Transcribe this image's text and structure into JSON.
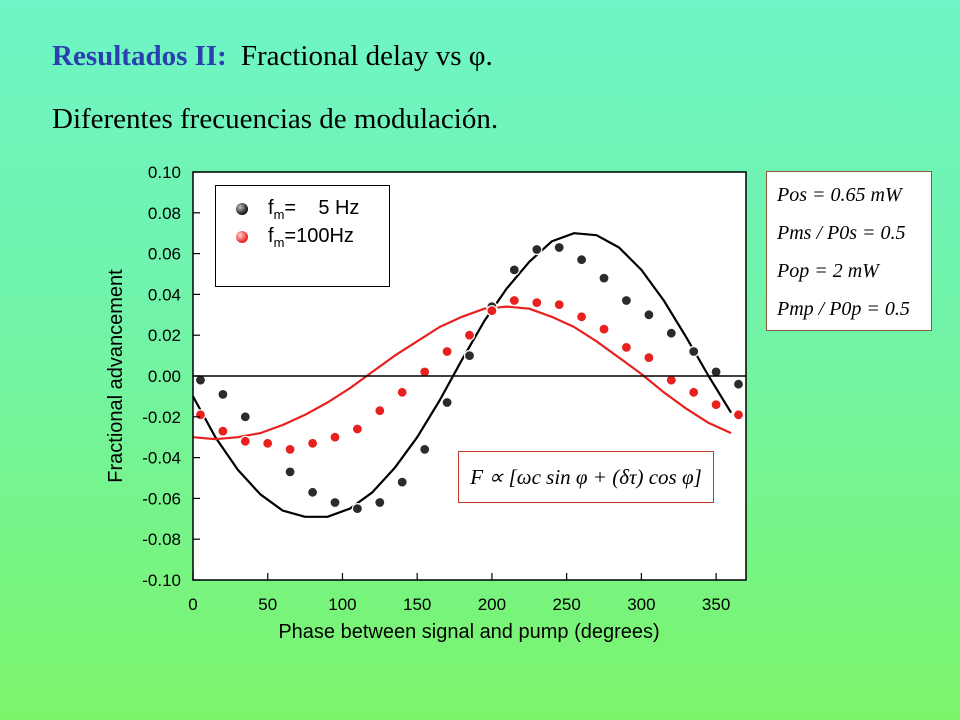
{
  "slide": {
    "title_label": "Resultados II:",
    "title_text": "Fractional delay vs φ.",
    "subtitle": "Diferentes frecuencias de modulación."
  },
  "chart_data": {
    "type": "scatter",
    "xlabel": "Phase between signal and pump (degrees)",
    "ylabel": "Fractional advancement",
    "xlim": [
      0,
      370
    ],
    "ylim": [
      -0.1,
      0.1
    ],
    "xticks": [
      0,
      50,
      100,
      150,
      200,
      250,
      300,
      350
    ],
    "yticks": [
      0.1,
      0.08,
      0.06,
      0.04,
      0.02,
      0.0,
      -0.02,
      -0.04,
      -0.06,
      -0.08,
      -0.1
    ],
    "ytick_labels": [
      "0.10",
      "0.08",
      "0.06",
      "0.04",
      "0.02",
      "0.00",
      "-0.02",
      "-0.04",
      "-0.06",
      "-0.08",
      "-0.10"
    ],
    "zero_line": true,
    "grid": false,
    "legend_position": "top-left",
    "series": [
      {
        "name": "fm= 5 Hz",
        "label_main": "f",
        "label_sub": "m",
        "label_rest": "=    5 Hz",
        "color": "#2b2b2b",
        "x": [
          5,
          20,
          35,
          50,
          65,
          80,
          95,
          110,
          125,
          140,
          155,
          170,
          185,
          200,
          215,
          230,
          245,
          260,
          275,
          290,
          305,
          320,
          335,
          350,
          365
        ],
        "y": [
          -0.002,
          -0.009,
          -0.02,
          -0.033,
          -0.047,
          -0.057,
          -0.062,
          -0.065,
          -0.062,
          -0.052,
          -0.036,
          -0.013,
          0.01,
          0.034,
          0.052,
          0.062,
          0.063,
          0.057,
          0.048,
          0.037,
          0.03,
          0.021,
          0.012,
          0.002,
          -0.004
        ]
      },
      {
        "name": "fm=100Hz",
        "label_main": "f",
        "label_sub": "m",
        "label_rest": "=100Hz",
        "color": "#e8201e",
        "x": [
          5,
          20,
          35,
          50,
          65,
          80,
          95,
          110,
          125,
          140,
          155,
          170,
          185,
          200,
          215,
          230,
          245,
          260,
          275,
          290,
          305,
          320,
          335,
          350,
          365
        ],
        "y": [
          -0.019,
          -0.027,
          -0.032,
          -0.033,
          -0.036,
          -0.033,
          -0.03,
          -0.026,
          -0.017,
          -0.008,
          0.002,
          0.012,
          0.02,
          0.032,
          0.037,
          0.036,
          0.035,
          0.029,
          0.023,
          0.014,
          0.009,
          -0.002,
          -0.008,
          -0.014,
          -0.019
        ]
      }
    ],
    "fit_curves": [
      {
        "color": "#000000",
        "x": [
          0,
          15,
          30,
          45,
          60,
          75,
          90,
          105,
          120,
          135,
          150,
          165,
          180,
          195,
          210,
          225,
          240,
          255,
          270,
          285,
          300,
          315,
          330,
          345,
          360
        ],
        "y": [
          -0.01,
          -0.03,
          -0.046,
          -0.058,
          -0.066,
          -0.069,
          -0.069,
          -0.065,
          -0.057,
          -0.045,
          -0.03,
          -0.012,
          0.008,
          0.027,
          0.043,
          0.056,
          0.066,
          0.07,
          0.069,
          0.063,
          0.052,
          0.037,
          0.019,
          0.0,
          -0.018
        ]
      },
      {
        "color": "#e8201e",
        "x": [
          0,
          15,
          30,
          45,
          60,
          75,
          90,
          105,
          120,
          135,
          150,
          165,
          180,
          195,
          210,
          225,
          240,
          255,
          270,
          285,
          300,
          315,
          330,
          345,
          360
        ],
        "y": [
          -0.03,
          -0.031,
          -0.03,
          -0.028,
          -0.024,
          -0.019,
          -0.013,
          -0.006,
          0.002,
          0.01,
          0.017,
          0.024,
          0.029,
          0.033,
          0.034,
          0.033,
          0.029,
          0.024,
          0.017,
          0.009,
          0.001,
          -0.008,
          -0.016,
          -0.023,
          -0.028
        ]
      }
    ]
  },
  "params": {
    "line1": "Pos = 0.65 mW",
    "line2": "Pms / P0s = 0.5",
    "line3": "Pop = 2 mW",
    "line4": "Pmp / P0p = 0.5"
  },
  "formula": "F ∝ [ωc sin φ + (δτ) cos φ]"
}
